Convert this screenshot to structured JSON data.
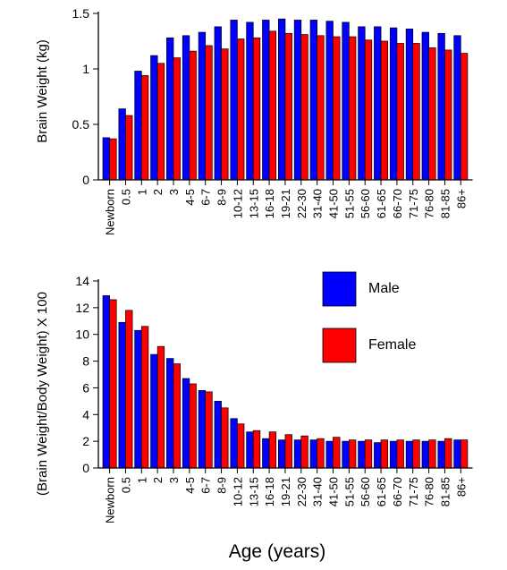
{
  "chart_data": [
    {
      "type": "bar",
      "categories": [
        "Newborn",
        "0.5",
        "1",
        "2",
        "3",
        "4-5",
        "6-7",
        "8-9",
        "10-12",
        "13-15",
        "16-18",
        "19-21",
        "22-30",
        "31-40",
        "41-50",
        "51-55",
        "56-60",
        "61-65",
        "66-70",
        "71-75",
        "76-80",
        "81-85",
        "86+"
      ],
      "series": [
        {
          "name": "Male",
          "color": "#0000ff",
          "values": [
            0.38,
            0.64,
            0.98,
            1.12,
            1.28,
            1.3,
            1.33,
            1.38,
            1.44,
            1.42,
            1.44,
            1.45,
            1.44,
            1.44,
            1.43,
            1.42,
            1.38,
            1.38,
            1.37,
            1.36,
            1.33,
            1.32,
            1.3
          ]
        },
        {
          "name": "Female",
          "color": "#ff0000",
          "values": [
            0.37,
            0.58,
            0.94,
            1.05,
            1.1,
            1.16,
            1.21,
            1.18,
            1.27,
            1.28,
            1.34,
            1.32,
            1.31,
            1.3,
            1.29,
            1.29,
            1.26,
            1.25,
            1.23,
            1.23,
            1.19,
            1.17,
            1.14
          ]
        }
      ],
      "ylabel": "Brain Weight (kg)",
      "xlabel": "",
      "ylim": [
        0,
        1.5
      ],
      "yticks": [
        "0",
        "0.5",
        "1",
        "1.5"
      ],
      "grid": false
    },
    {
      "type": "bar",
      "categories": [
        "Newborn",
        "0.5",
        "1",
        "2",
        "3",
        "4-5",
        "6-7",
        "8-9",
        "10-12",
        "13-15",
        "16-18",
        "19-21",
        "22-30",
        "31-40",
        "41-50",
        "51-55",
        "56-60",
        "61-65",
        "66-70",
        "71-75",
        "76-80",
        "81-85",
        "86+"
      ],
      "series": [
        {
          "name": "Male",
          "color": "#0000ff",
          "values": [
            12.9,
            10.9,
            10.3,
            8.5,
            8.2,
            6.7,
            5.8,
            5.0,
            3.7,
            2.7,
            2.2,
            2.1,
            2.1,
            2.1,
            2.0,
            2.0,
            2.0,
            1.9,
            2.0,
            2.0,
            2.0,
            2.0,
            2.1
          ]
        },
        {
          "name": "Female",
          "color": "#ff0000",
          "values": [
            12.6,
            11.8,
            10.6,
            9.1,
            7.8,
            6.3,
            5.7,
            4.5,
            3.3,
            2.8,
            2.7,
            2.5,
            2.4,
            2.2,
            2.3,
            2.1,
            2.1,
            2.1,
            2.1,
            2.1,
            2.1,
            2.2,
            2.1
          ]
        }
      ],
      "ylabel": "(Brain Weight/Body Weight) X 100",
      "xlabel": "Age (years)",
      "ylim": [
        0,
        14
      ],
      "yticks": [
        "0",
        "2",
        "4",
        "6",
        "8",
        "10",
        "12",
        "14"
      ],
      "legend": {
        "position": "top-right",
        "entries": [
          "Male",
          "Female"
        ]
      },
      "grid": false
    }
  ]
}
